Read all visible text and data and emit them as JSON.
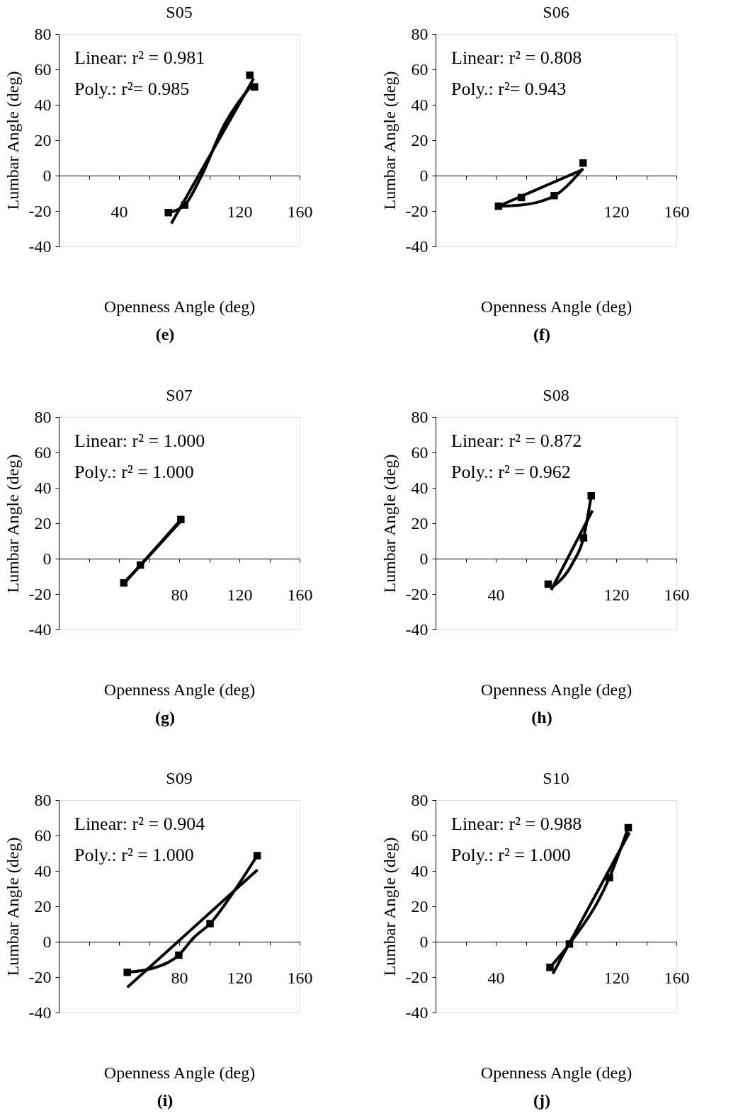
{
  "chart_data": [
    {
      "type": "scatter",
      "title": "S05",
      "xlabel": "Openness Angle (deg)",
      "ylabel": "Lumbar Angle (deg)",
      "xlim": [
        0,
        160
      ],
      "ylim": [
        -40,
        80
      ],
      "xticks": [
        {
          "value": 20,
          "label": null
        },
        40,
        {
          "value": 60,
          "label": null
        },
        {
          "value": 80,
          "label": null
        },
        {
          "value": 100,
          "label": null
        },
        120,
        {
          "value": 140,
          "label": null
        },
        160
      ],
      "yticks": [
        -40,
        -20,
        0,
        20,
        40,
        60,
        80
      ],
      "grid": false,
      "annotations": [
        "Linear: r² = 0.981",
        "Poly.:  r²= 0.985",
        "(e)"
      ],
      "series": [
        {
          "marker": "square",
          "color": "#000000",
          "x": [
            72.8,
            83.7,
            126.9,
            130
          ],
          "values": [
            -20.9,
            -16.6,
            56.7,
            50.1
          ]
        },
        {
          "type": "line",
          "color": "#000000",
          "x": [
            74.8,
            129.5
          ],
          "values": [
            -27,
            54.9
          ]
        },
        {
          "type": "line",
          "color": "#000000",
          "x": [
            72.8,
            83.7,
            94.4,
            110,
            128.7
          ],
          "values": [
            -20.9,
            -16.6,
            -0.8,
            28.8,
            51.5
          ]
        }
      ]
    },
    {
      "type": "scatter",
      "title": "S06",
      "xlabel": "Openness Angle (deg)",
      "ylabel": "Lumbar Angle (deg)",
      "xlim": [
        0,
        160
      ],
      "ylim": [
        -40,
        80
      ],
      "xticks": [
        {
          "value": 20,
          "label": null
        },
        {
          "value": 40,
          "label": null
        },
        {
          "value": 60,
          "label": null
        },
        {
          "value": 80,
          "label": null
        },
        {
          "value": 100,
          "label": null
        },
        120,
        {
          "value": 140,
          "label": null
        },
        160
      ],
      "yticks": [
        -40,
        -20,
        0,
        20,
        40,
        60,
        80
      ],
      "grid": false,
      "annotations": [
        "Linear: r² = 0.808",
        "Poly.:    r²= 0.943",
        "(f)"
      ],
      "series": [
        {
          "marker": "square",
          "color": "#000000",
          "x": [
            41.8,
            57,
            78.8,
            98
          ],
          "values": [
            -17.3,
            -12.4,
            -11.3,
            7.1
          ]
        },
        {
          "type": "line",
          "color": "#000000",
          "x": [
            41.8,
            98
          ],
          "values": [
            -17.3,
            3.5
          ]
        },
        {
          "type": "line",
          "color": "#000000",
          "x": [
            41.8,
            57,
            78.8,
            98
          ],
          "values": [
            -17.3,
            -16.6,
            -11.5,
            4
          ]
        }
      ]
    },
    {
      "type": "scatter",
      "title": "S07",
      "xlabel": "Openness Angle (deg)",
      "ylabel": "Lumbar Angle (deg)",
      "xlim": [
        0,
        160
      ],
      "ylim": [
        -40,
        80
      ],
      "xticks": [
        {
          "value": 20,
          "label": null
        },
        {
          "value": 40,
          "label": null
        },
        {
          "value": 60,
          "label": null
        },
        80,
        {
          "value": 100,
          "label": null
        },
        120,
        {
          "value": 140,
          "label": null
        },
        160
      ],
      "yticks": [
        -40,
        -20,
        0,
        20,
        40,
        60,
        80
      ],
      "grid": false,
      "annotations": [
        "Linear: r² = 1.000",
        "Poly.:  r² = 1.000",
        "(g)"
      ],
      "series": [
        {
          "marker": "square",
          "color": "#000000",
          "x": [
            43.2,
            54.2,
            81.1
          ],
          "values": [
            -13.7,
            -3.6,
            22.1
          ]
        },
        {
          "type": "line",
          "color": "#000000",
          "x": [
            43.2,
            81.1
          ],
          "values": [
            -14.2,
            21.2
          ]
        },
        {
          "type": "line",
          "color": "#000000",
          "x": [
            43.2,
            54.2,
            81.1
          ],
          "values": [
            -13.7,
            -3.6,
            22.1
          ]
        }
      ]
    },
    {
      "type": "scatter",
      "title": "S08",
      "xlabel": "Openness Angle (deg)",
      "ylabel": "Lumbar Angle (deg)",
      "xlim": [
        0,
        160
      ],
      "ylim": [
        -40,
        80
      ],
      "xticks": [
        {
          "value": 20,
          "label": null
        },
        40,
        {
          "value": 60,
          "label": null
        },
        {
          "value": 80,
          "label": null
        },
        {
          "value": 100,
          "label": null
        },
        120,
        {
          "value": 140,
          "label": null
        },
        160
      ],
      "yticks": [
        -40,
        -20,
        0,
        20,
        40,
        60,
        80
      ],
      "grid": false,
      "annotations": [
        "Linear: r² = 0.872",
        "Poly.:  r² = 0.962",
        "(h)"
      ],
      "series": [
        {
          "marker": "square",
          "color": "#000000",
          "x": [
            74.8,
            98.3,
            103.4
          ],
          "values": [
            -14.4,
            11.8,
            35.5
          ]
        },
        {
          "type": "line",
          "color": "#000000",
          "x": [
            76.8,
            104.2
          ],
          "values": [
            -17.7,
            27.2
          ]
        },
        {
          "type": "line",
          "color": "#000000",
          "x": [
            76.8,
            91.2,
            98.3,
            103.4
          ],
          "values": [
            -16.5,
            -2.3,
            11.8,
            35.5
          ]
        }
      ]
    },
    {
      "type": "scatter",
      "title": "S09",
      "xlabel": "Openness Angle (deg)",
      "ylabel": "Lumbar Angle (deg)",
      "xlim": [
        0,
        160
      ],
      "ylim": [
        -40,
        80
      ],
      "xticks": [
        {
          "value": 20,
          "label": null
        },
        {
          "value": 40,
          "label": null
        },
        {
          "value": 60,
          "label": null
        },
        80,
        {
          "value": 100,
          "label": null
        },
        120,
        {
          "value": 140,
          "label": null
        },
        160
      ],
      "yticks": [
        -40,
        -20,
        0,
        20,
        40,
        60,
        80
      ],
      "grid": false,
      "annotations": [
        "Linear: r² = 0.904",
        "Poly.:  r² = 1.000",
        "(i)"
      ],
      "series": [
        {
          "marker": "square",
          "color": "#000000",
          "x": [
            45.5,
            79.7,
            100.5,
            131.8
          ],
          "values": [
            -17.3,
            -7.6,
            10.2,
            48.6
          ]
        },
        {
          "type": "line",
          "color": "#000000",
          "x": [
            45.5,
            132
          ],
          "values": [
            -25.8,
            40.6
          ]
        },
        {
          "type": "line",
          "color": "#000000",
          "x": [
            45.5,
            64.8,
            79.7,
            89.8,
            100.5,
            114.9,
            131.8
          ],
          "values": [
            -17.3,
            -14.4,
            -7.6,
            2.4,
            10.2,
            26.6,
            48.6
          ]
        }
      ]
    },
    {
      "type": "scatter",
      "title": "S10",
      "xlabel": "Openness Angle (deg)",
      "ylabel": "Lumbar Angle (deg)",
      "xlim": [
        0,
        160
      ],
      "ylim": [
        -40,
        80
      ],
      "xticks": [
        {
          "value": 20,
          "label": null
        },
        40,
        {
          "value": 60,
          "label": null
        },
        {
          "value": 80,
          "label": null
        },
        {
          "value": 100,
          "label": null
        },
        120,
        {
          "value": 140,
          "label": null
        },
        160
      ],
      "yticks": [
        -40,
        -20,
        0,
        20,
        40,
        60,
        80
      ],
      "grid": false,
      "annotations": [
        "Linear: r² = 0.988",
        "Poly.:  r² = 1.000",
        "(j)"
      ],
      "series": [
        {
          "marker": "square",
          "color": "#000000",
          "x": [
            76,
            88.9,
            115.5,
            128
          ],
          "values": [
            -14.5,
            -1.3,
            36.2,
            64.4
          ]
        },
        {
          "type": "line",
          "color": "#000000",
          "x": [
            77.9,
            128.8
          ],
          "values": [
            -18.1,
            61.7
          ]
        },
        {
          "type": "line",
          "color": "#000000",
          "x": [
            76,
            88.9,
            115.5,
            128
          ],
          "values": [
            -14.5,
            -1.3,
            36.2,
            64.4
          ]
        }
      ]
    }
  ]
}
